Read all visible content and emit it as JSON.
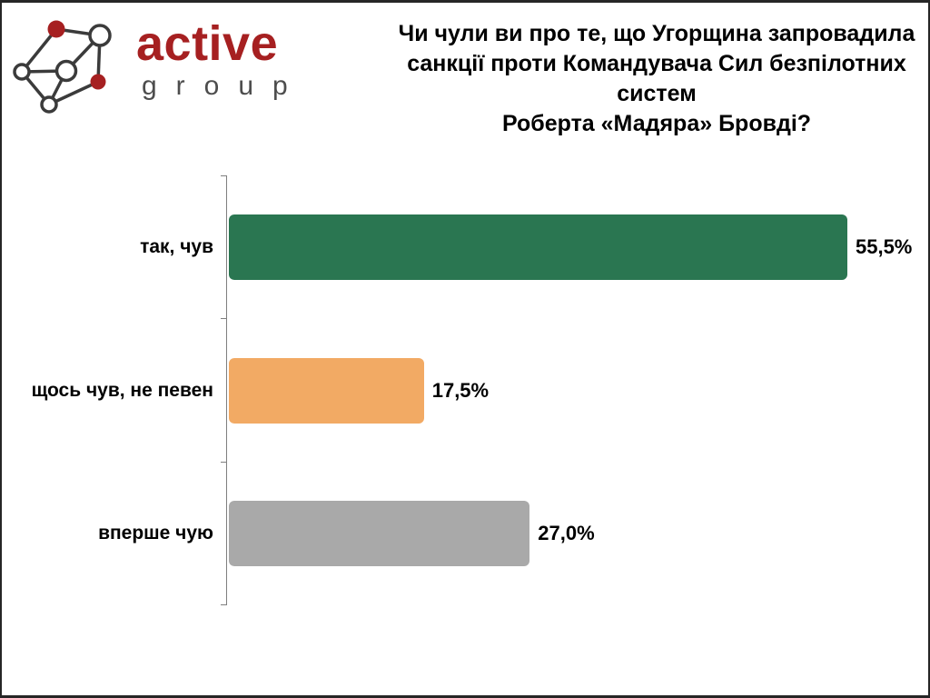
{
  "logo": {
    "brand": "active",
    "sub": "group",
    "brand_color": "#A62021",
    "sub_color": "#4d4d4d",
    "icon": "network-graph-icon"
  },
  "title": {
    "full": "Чи чули ви про те, що Угорщина запровадила санкції проти Командувача Сил безпілотних систем Роберта «Мадяра» Бровді?",
    "lines": [
      "Чи чули ви про те, що Угорщина запровадила",
      "санкції проти Командувача Сил безпілотних систем",
      "Роберта «Мадяра» Бровді?"
    ]
  },
  "chart_data": {
    "type": "bar",
    "orientation": "horizontal",
    "categories": [
      "так, чув",
      "щось чув, не певен",
      "вперше чую"
    ],
    "values": [
      55.5,
      17.5,
      27.0
    ],
    "value_labels": [
      "55,5%",
      "17,5%",
      "27,0%"
    ],
    "colors": [
      "#2A7651",
      "#F2AA64",
      "#A9A9A9"
    ],
    "title": "",
    "xlabel": "",
    "ylabel": "",
    "xlim": [
      0,
      60
    ],
    "grid": false,
    "legend": "none"
  }
}
